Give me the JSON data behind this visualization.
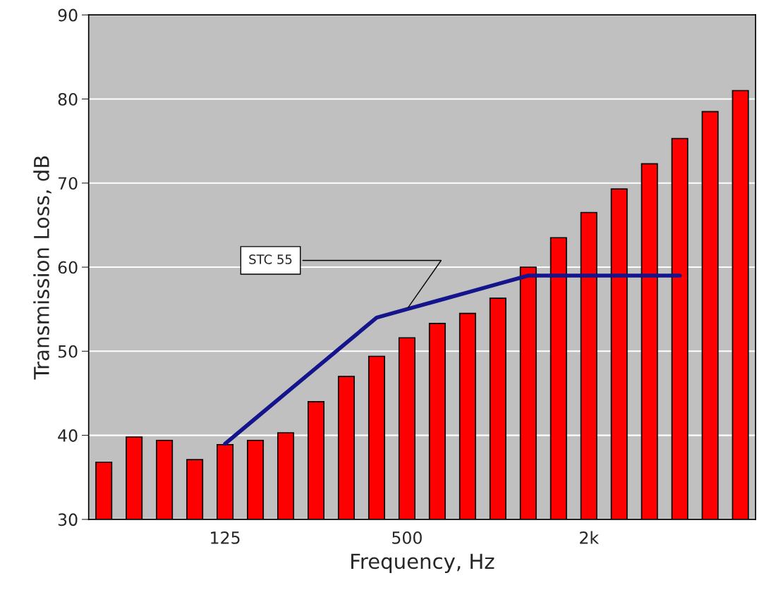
{
  "chart_data": {
    "type": "bar",
    "xlabel": "Frequency, Hz",
    "ylabel": "Transmission Loss, dB",
    "categories": [
      null,
      null,
      null,
      null,
      "125",
      null,
      null,
      null,
      null,
      null,
      "500",
      null,
      null,
      null,
      null,
      null,
      "2k",
      null,
      null,
      null,
      null,
      null
    ],
    "series": [
      {
        "color": "#ff0000",
        "values": [
          36.8,
          39.8,
          39.4,
          37.1,
          38.9,
          39.4,
          40.3,
          44,
          47,
          49.4,
          51.6,
          53.3,
          54.5,
          56.3,
          60,
          63.5,
          66.5,
          69.3,
          72.3,
          75.3,
          78.5,
          81
        ]
      },
      {
        "type": "line",
        "color": "#14148c",
        "values": [
          null,
          null,
          null,
          null,
          39,
          42,
          45,
          48,
          51,
          54,
          55,
          56,
          57,
          58,
          59,
          59,
          59,
          59,
          59,
          59,
          null,
          null
        ]
      }
    ],
    "ylim": [
      30,
      90
    ],
    "yticks": [
      30,
      40,
      50,
      60,
      70,
      80,
      90
    ],
    "grid": "y",
    "legend": false,
    "annotations": [
      {
        "text": "STC 55",
        "x": "500",
        "y": 55
      }
    ]
  }
}
